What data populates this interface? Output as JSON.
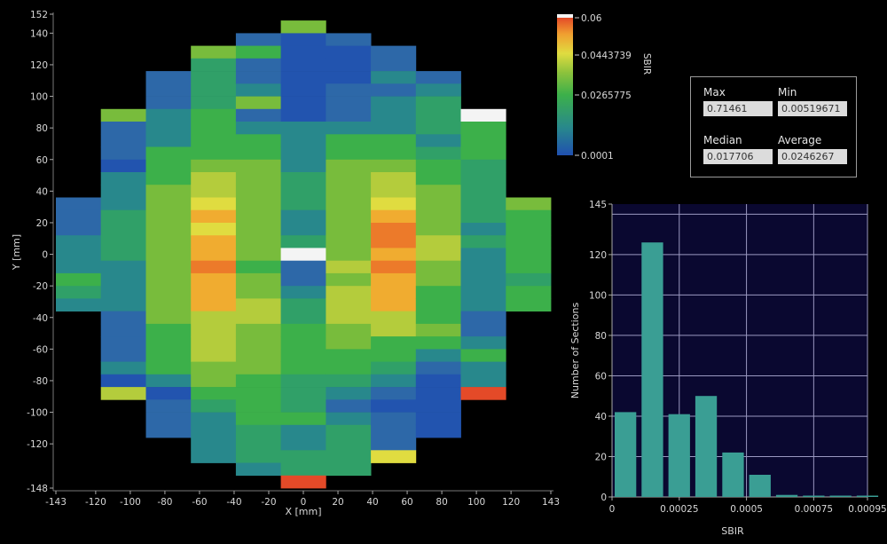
{
  "stats": {
    "max_label": "Max",
    "max_value": "0.71461",
    "min_label": "Min",
    "min_value": "0.00519671",
    "median_label": "Median",
    "median_value": "0.017706",
    "average_label": "Average",
    "average_value": "0.0246267"
  },
  "colorbar": {
    "title": "SBIR",
    "ticks": [
      "0.06",
      "0.0443739",
      "0.0265775",
      "0.0001"
    ],
    "range": [
      0.0001,
      0.06
    ],
    "colors": [
      "#2050b0",
      "#28888c",
      "#3cb04a",
      "#e0dc40",
      "#e44a28",
      "#f4f4f4"
    ]
  },
  "chart_data": [
    {
      "type": "heatmap",
      "xlabel": "X [mm]",
      "ylabel": "Y [mm]",
      "xlim": [
        -143,
        143
      ],
      "ylim": [
        -148,
        152
      ],
      "x_ticks": [
        "-143",
        "-120",
        "-100",
        "-80",
        "-60",
        "-40",
        "-20",
        "0",
        "20",
        "40",
        "60",
        "80",
        "100",
        "120",
        "143"
      ],
      "y_ticks": [
        "152",
        "140",
        "120",
        "100",
        "80",
        "60",
        "40",
        "20",
        "0",
        "-20",
        "-40",
        "-60",
        "-80",
        "-100",
        "-120",
        "-148"
      ],
      "cell_width_mm": 26,
      "cell_height_mm": 8,
      "columns": [
        {
          "x_left": -143,
          "y_top": 36,
          "values": [
            0.006,
            0.006,
            0.006,
            0.012,
            0.012,
            0.012,
            0.024,
            0.018,
            0.012
          ]
        },
        {
          "x_left": -117,
          "y_top": 92,
          "values": [
            0.03,
            0.006,
            0.006,
            0.006,
            0.001,
            0.012,
            0.012,
            0.012,
            0.018,
            0.018,
            0.018,
            0.018,
            0.012,
            0.012,
            0.012,
            0.012,
            0.006,
            0.006,
            0.006,
            0.006,
            0.012,
            0.001,
            0.036
          ]
        },
        {
          "x_left": -91,
          "y_top": 116,
          "values": [
            0.006,
            0.006,
            0.006,
            0.012,
            0.012,
            0.012,
            0.024,
            0.024,
            0.024,
            0.03,
            0.03,
            0.03,
            0.03,
            0.03,
            0.03,
            0.03,
            0.03,
            0.03,
            0.03,
            0.03,
            0.024,
            0.024,
            0.024,
            0.024,
            0.012,
            0.001,
            0.006,
            0.006,
            0.006
          ]
        },
        {
          "x_left": -65,
          "y_top": 132,
          "values": [
            0.03,
            0.018,
            0.018,
            0.018,
            0.018,
            0.024,
            0.024,
            0.024,
            0.024,
            0.03,
            0.036,
            0.036,
            0.042,
            0.048,
            0.042,
            0.048,
            0.048,
            0.054,
            0.048,
            0.048,
            0.048,
            0.036,
            0.036,
            0.036,
            0.036,
            0.03,
            0.03,
            0.024,
            0.018,
            0.012,
            0.012,
            0.012,
            0.012
          ]
        },
        {
          "x_left": -39,
          "y_top": 140,
          "values": [
            0.006,
            0.024,
            0.006,
            0.006,
            0.012,
            0.03,
            0.006,
            0.012,
            0.024,
            0.024,
            0.03,
            0.03,
            0.03,
            0.03,
            0.03,
            0.03,
            0.03,
            0.03,
            0.024,
            0.03,
            0.03,
            0.036,
            0.036,
            0.03,
            0.03,
            0.03,
            0.03,
            0.024,
            0.024,
            0.024,
            0.024,
            0.018,
            0.018,
            0.018,
            0.012
          ]
        },
        {
          "x_left": -13,
          "y_top": 148,
          "values": [
            0.03,
            0.001,
            0.001,
            0.001,
            0.001,
            0.001,
            0.001,
            0.001,
            0.012,
            0.012,
            0.012,
            0.012,
            0.018,
            0.018,
            0.018,
            0.012,
            0.012,
            0.018,
            0.07,
            0.006,
            0.006,
            0.012,
            0.018,
            0.018,
            0.024,
            0.024,
            0.024,
            0.024,
            0.018,
            0.018,
            0.018,
            0.024,
            0.012,
            0.012,
            0.018,
            0.018,
            0.058
          ]
        },
        {
          "x_left": 13,
          "y_top": 140,
          "values": [
            0.006,
            0.001,
            0.001,
            0.001,
            0.006,
            0.006,
            0.006,
            0.012,
            0.024,
            0.024,
            0.03,
            0.03,
            0.03,
            0.03,
            0.03,
            0.03,
            0.03,
            0.03,
            0.036,
            0.03,
            0.036,
            0.036,
            0.036,
            0.03,
            0.03,
            0.024,
            0.024,
            0.018,
            0.012,
            0.006,
            0.012,
            0.018,
            0.018,
            0.018,
            0.018
          ]
        },
        {
          "x_left": 39,
          "y_top": 132,
          "values": [
            0.006,
            0.006,
            0.012,
            0.006,
            0.012,
            0.012,
            0.012,
            0.024,
            0.024,
            0.03,
            0.036,
            0.036,
            0.042,
            0.048,
            0.054,
            0.054,
            0.048,
            0.054,
            0.048,
            0.048,
            0.048,
            0.036,
            0.036,
            0.024,
            0.024,
            0.018,
            0.012,
            0.006,
            0.001,
            0.006,
            0.006,
            0.006,
            0.042
          ]
        },
        {
          "x_left": 65,
          "y_top": 116,
          "values": [
            0.006,
            0.012,
            0.018,
            0.018,
            0.018,
            0.012,
            0.018,
            0.024,
            0.024,
            0.03,
            0.03,
            0.03,
            0.03,
            0.036,
            0.036,
            0.03,
            0.03,
            0.024,
            0.024,
            0.024,
            0.03,
            0.024,
            0.012,
            0.006,
            0.001,
            0.001,
            0.001,
            0.001,
            0.001
          ]
        },
        {
          "x_left": 91,
          "y_top": 92,
          "values": [
            0.07,
            0.024,
            0.024,
            0.024,
            0.018,
            0.018,
            0.018,
            0.018,
            0.018,
            0.012,
            0.018,
            0.012,
            0.012,
            0.012,
            0.012,
            0.012,
            0.006,
            0.006,
            0.012,
            0.024,
            0.012,
            0.012,
            0.058
          ]
        },
        {
          "x_left": 117,
          "y_top": 36,
          "values": [
            0.03,
            0.024,
            0.024,
            0.024,
            0.024,
            0.024,
            0.018,
            0.024,
            0.024
          ]
        }
      ]
    },
    {
      "type": "bar",
      "xlabel": "SBIR",
      "ylabel": "Number of Sections",
      "xlim": [
        0,
        0.00095
      ],
      "ylim": [
        0,
        145
      ],
      "grid": true,
      "x_ticks": [
        "0",
        "0.00025",
        "0.0005",
        "0.00075",
        "0.00095"
      ],
      "y_ticks": [
        "0",
        "20",
        "40",
        "60",
        "80",
        "100",
        "120",
        "145"
      ],
      "bin_width": 0.0001,
      "bin_starts": [
        0,
        0.0001,
        0.0002,
        0.0003,
        0.0004,
        0.0005,
        0.0006,
        0.0007,
        0.0008,
        0.0009
      ],
      "values": [
        42,
        126,
        41,
        50,
        22,
        11,
        1,
        0,
        0,
        0
      ],
      "bar_color": "#3a9e94",
      "plot_background": "#0a0830"
    }
  ]
}
